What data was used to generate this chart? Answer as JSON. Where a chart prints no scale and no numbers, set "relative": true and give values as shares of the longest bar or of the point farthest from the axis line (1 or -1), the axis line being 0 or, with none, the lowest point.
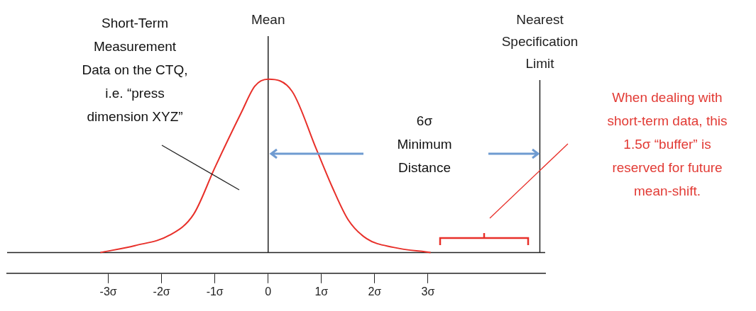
{
  "chart_data": {
    "type": "line",
    "relative": true,
    "x": [
      -3.15,
      -2.5,
      -1.85,
      -1.4,
      -1,
      -0.5,
      -0.25,
      0,
      0.45,
      0.9,
      1.2,
      1.5,
      1.85,
      2.35,
      3.05
    ],
    "series": [
      {
        "color": "#e8302a",
        "values": [
          0,
          0.04,
          0.1,
          0.22,
          0.49,
          0.81,
          0.96,
          1,
          0.93,
          0.6,
          0.38,
          0.19,
          0.08,
          0.03,
          0
        ]
      }
    ],
    "xlim": [
      -4.9,
      5.2
    ],
    "xticks": [
      {
        "value": -3,
        "label": "-3σ"
      },
      {
        "value": -2,
        "label": "-2σ"
      },
      {
        "value": -1,
        "label": "-1σ"
      },
      0,
      {
        "value": 1,
        "label": "1σ"
      },
      {
        "value": 2,
        "label": "2σ"
      },
      {
        "value": 3,
        "label": "3σ"
      }
    ],
    "ref_lines": [
      {
        "axis": "x",
        "value": 0,
        "label": "Mean"
      },
      {
        "axis": "x",
        "value": 5.1,
        "label": "Nearest Specification Limit"
      }
    ],
    "annotations": [
      "Short-Term Measurement Data on the CTQ, i.e. “press dimension XYZ”",
      "6σ Minimum Distance",
      "When dealing with short-term data, this 1.5σ “buffer” is reserved for future mean-shift."
    ]
  }
}
